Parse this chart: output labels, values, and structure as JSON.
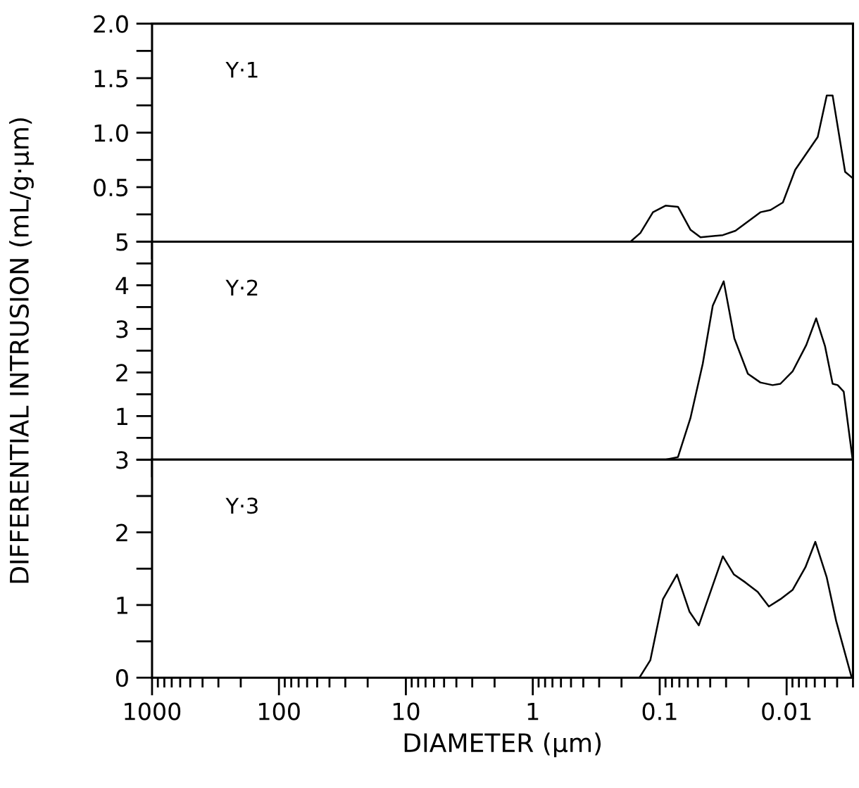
{
  "chart_data": [
    {
      "type": "line",
      "annotations": [
        "Y·1"
      ],
      "tick_labels": "y",
      "xlim": [
        1000,
        0.003
      ],
      "xticks": [
        1000,
        100,
        10,
        1,
        0.1,
        0.01
      ],
      "log": "x",
      "ylim": [
        0,
        2.0
      ],
      "yticks": [
        {
          "value": 0,
          "label": null
        },
        {
          "value": 0.25,
          "label": null
        },
        {
          "value": 0.5,
          "label": "0.5"
        },
        {
          "value": 0.75,
          "label": null
        },
        {
          "value": 1.0,
          "label": "1.0"
        },
        {
          "value": 1.25,
          "label": null
        },
        {
          "value": 1.5,
          "label": "1.5"
        },
        {
          "value": 1.75,
          "label": null
        },
        {
          "value": 2.0,
          "label": "2.0"
        }
      ],
      "series": [
        {
          "color": "#000000",
          "x": [
            0.17,
            0.142,
            0.113,
            0.09,
            0.0718,
            0.0573,
            0.0477,
            0.0318,
            0.0253,
            0.0161,
            0.0134,
            0.0107,
            0.00855,
            0.00569,
            0.00483,
            0.00434,
            0.00346,
            0.00307
          ],
          "values": [
            0,
            0.08,
            0.27,
            0.33,
            0.32,
            0.11,
            0.04,
            0.06,
            0.1,
            0.27,
            0.29,
            0.36,
            0.66,
            0.96,
            1.34,
            1.34,
            0.64,
            0.59
          ]
        }
      ]
    },
    {
      "type": "line",
      "annotations": [
        "Y·2"
      ],
      "ylabel": "DIFFERENTIAL INTRUSION (mL/g·μm)",
      "tick_labels": "y",
      "xlim": [
        1000,
        0.003
      ],
      "xticks": [
        1000,
        100,
        10,
        1,
        0.1,
        0.01
      ],
      "log": "x",
      "ylim": [
        0,
        5
      ],
      "yticks": [
        {
          "value": 0,
          "label": null
        },
        {
          "value": 0.5,
          "label": null
        },
        1,
        {
          "value": 1.5,
          "label": null
        },
        2,
        {
          "value": 2.5,
          "label": null
        },
        3,
        {
          "value": 3.5,
          "label": null
        },
        4,
        {
          "value": 4.5,
          "label": null
        },
        5
      ],
      "series": [
        {
          "color": "#000000",
          "x": [
            0.0895,
            0.0718,
            0.0573,
            0.0458,
            0.0382,
            0.0313,
            0.0258,
            0.0202,
            0.0161,
            0.0129,
            0.0112,
            0.00895,
            0.007,
            0.00585,
            0.00498,
            0.00434,
            0.00396,
            0.00355,
            0.00302
          ],
          "values": [
            0,
            0.06,
            0.95,
            2.2,
            3.53,
            4.09,
            2.78,
            1.97,
            1.77,
            1.71,
            1.74,
            2.03,
            2.63,
            3.24,
            2.6,
            1.74,
            1.71,
            1.56,
            0
          ]
        }
      ]
    },
    {
      "type": "line",
      "annotations": [
        "Y·3"
      ],
      "xlabel": "DIAMETER (μm)",
      "xlim": [
        1000,
        0.003
      ],
      "xticks": [
        1000,
        100,
        10,
        1,
        0.1,
        0.01
      ],
      "log": "x",
      "ylim": [
        0,
        3
      ],
      "yticks": [
        0,
        {
          "value": 0.5,
          "label": null
        },
        1,
        {
          "value": 1.5,
          "label": null
        },
        2,
        {
          "value": 2.5,
          "label": null
        },
        3
      ],
      "series": [
        {
          "color": "#000000",
          "x": [
            0.1445,
            0.1186,
            0.0943,
            0.0731,
            0.0583,
            0.0492,
            0.0318,
            0.026,
            0.0211,
            0.0169,
            0.0138,
            0.0112,
            0.00895,
            0.00711,
            0.00594,
            0.00483,
            0.00407,
            0.00307
          ],
          "values": [
            0,
            0.24,
            1.08,
            1.42,
            0.91,
            0.72,
            1.67,
            1.42,
            1.31,
            1.18,
            0.98,
            1.08,
            1.21,
            1.52,
            1.87,
            1.38,
            0.78,
            0
          ]
        }
      ]
    }
  ]
}
